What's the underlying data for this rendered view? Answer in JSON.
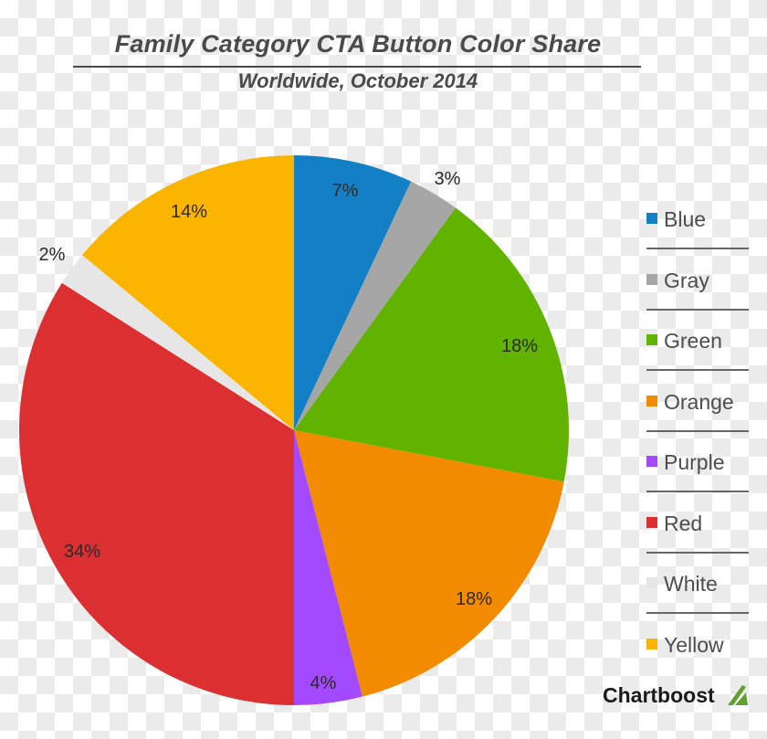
{
  "header": {
    "title": "Family Category CTA Button Color Share",
    "subtitle": "Worldwide, October 2014"
  },
  "chart_data": {
    "type": "pie",
    "title": "Family Category CTA Button Color Share",
    "subtitle": "Worldwide, October 2014",
    "categories": [
      "Blue",
      "Gray",
      "Green",
      "Orange",
      "Purple",
      "Red",
      "White",
      "Yellow"
    ],
    "values": [
      7,
      3,
      18,
      18,
      4,
      34,
      2,
      14
    ],
    "unit": "%",
    "colors": [
      "#1380c6",
      "#a6a6a6",
      "#62b300",
      "#f38b00",
      "#a349ff",
      "#dc2f31",
      "#e6e6e6",
      "#fbb500"
    ],
    "legend_position": "right",
    "start_angle": "12 o'clock, clockwise"
  },
  "slices": [
    {
      "name": "Blue",
      "label": "7%",
      "color": "#1380c6"
    },
    {
      "name": "Gray",
      "label": "3%",
      "color": "#a6a6a6"
    },
    {
      "name": "Green",
      "label": "18%",
      "color": "#62b300"
    },
    {
      "name": "Orange",
      "label": "18%",
      "color": "#f38b00"
    },
    {
      "name": "Purple",
      "label": "4%",
      "color": "#a349ff"
    },
    {
      "name": "Red",
      "label": "34%",
      "color": "#dc2f31"
    },
    {
      "name": "White",
      "label": "2%",
      "color": "#e6e6e6"
    },
    {
      "name": "Yellow",
      "label": "14%",
      "color": "#fbb500"
    }
  ],
  "legend": {
    "items": [
      {
        "label": "Blue",
        "color": "#1380c6"
      },
      {
        "label": "Gray",
        "color": "#a6a6a6"
      },
      {
        "label": "Green",
        "color": "#62b300"
      },
      {
        "label": "Orange",
        "color": "#f38b00"
      },
      {
        "label": "Purple",
        "color": "#a349ff"
      },
      {
        "label": "Red",
        "color": "#dc2f31"
      },
      {
        "label": "White",
        "color": "#e6e6e6"
      },
      {
        "label": "Yellow",
        "color": "#fbb500"
      }
    ]
  },
  "brand": {
    "name": "Chartboost",
    "logo_color": "#5fa22d"
  }
}
